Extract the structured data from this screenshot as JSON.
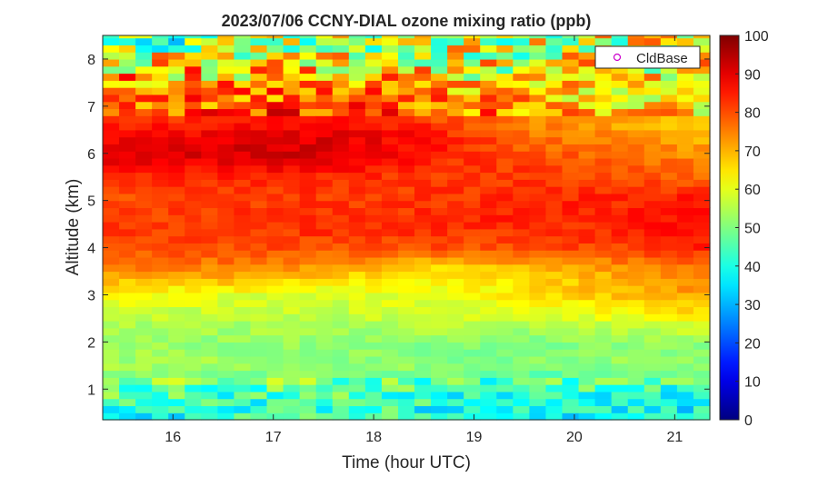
{
  "chart_data": {
    "type": "heatmap",
    "title": "2023/07/06 CCNY-DIAL ozone mixing ratio (ppb)",
    "xlabel": "Time (hour UTC)",
    "ylabel": "Altitude (km)",
    "xlim": [
      15.3,
      21.35
    ],
    "ylim": [
      0.35,
      8.5
    ],
    "xticks": [
      "16",
      "17",
      "18",
      "19",
      "20",
      "21"
    ],
    "xtick_values": [
      16,
      17,
      18,
      19,
      20,
      21
    ],
    "yticks": [
      "1",
      "2",
      "3",
      "4",
      "5",
      "6",
      "7",
      "8"
    ],
    "ytick_values": [
      1,
      2,
      3,
      4,
      5,
      6,
      7,
      8
    ],
    "colorbar": {
      "min": 0,
      "max": 100,
      "ticks": [
        "0",
        "10",
        "20",
        "30",
        "40",
        "50",
        "60",
        "70",
        "80",
        "90",
        "100"
      ],
      "tick_values": [
        0,
        10,
        20,
        30,
        40,
        50,
        60,
        70,
        80,
        90,
        100
      ],
      "colormap": "jet"
    },
    "legend": {
      "entries": [
        "CldBase"
      ],
      "marker": "circle",
      "marker_color": "#cc00cc",
      "placement": "top-right"
    },
    "profiles": {
      "altitudes_km": [
        0.5,
        1.0,
        1.5,
        2.0,
        2.5,
        3.0,
        3.5,
        4.0,
        4.5,
        5.0,
        5.5,
        6.0,
        6.5,
        7.0,
        7.5,
        8.0,
        8.4
      ],
      "times_hr": [
        15.5,
        16.5,
        17.5,
        18.5,
        19.5,
        20.5,
        21.2
      ],
      "ozone_ppb": [
        [
          36,
          48,
          54,
          52,
          56,
          62,
          74,
          80,
          82,
          80,
          84,
          90,
          86,
          76,
          72,
          62,
          48
        ],
        [
          40,
          46,
          53,
          52,
          55,
          60,
          74,
          80,
          82,
          82,
          84,
          92,
          88,
          78,
          74,
          60,
          50
        ],
        [
          44,
          48,
          52,
          52,
          56,
          58,
          70,
          80,
          84,
          82,
          84,
          92,
          90,
          80,
          76,
          64,
          52
        ],
        [
          40,
          44,
          52,
          50,
          58,
          60,
          64,
          80,
          84,
          82,
          82,
          86,
          86,
          76,
          70,
          62,
          56
        ],
        [
          38,
          42,
          50,
          50,
          58,
          64,
          66,
          80,
          84,
          84,
          82,
          80,
          76,
          72,
          66,
          60,
          58
        ],
        [
          38,
          42,
          52,
          52,
          60,
          70,
          72,
          82,
          84,
          84,
          80,
          76,
          72,
          68,
          64,
          60,
          58
        ],
        [
          38,
          44,
          52,
          52,
          62,
          72,
          76,
          84,
          88,
          86,
          78,
          74,
          68,
          64,
          62,
          60,
          60
        ]
      ]
    }
  }
}
